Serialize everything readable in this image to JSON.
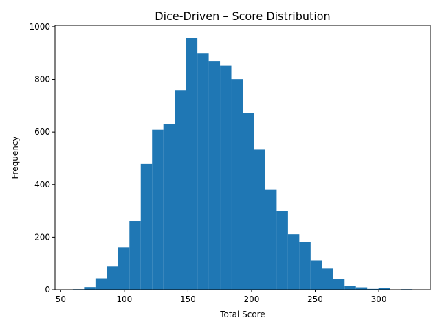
{
  "chart_data": {
    "type": "bar",
    "title": "Dice-Driven – Score Distribution",
    "xlabel": "Total Score",
    "ylabel": "Frequency",
    "color": "#1f77b4",
    "bin_edges": [
      59.5,
      68.4,
      77.3,
      86.2,
      95.1,
      104.0,
      112.9,
      121.8,
      130.7,
      139.6,
      148.5,
      157.4,
      166.3,
      175.2,
      184.1,
      193.0,
      201.9,
      210.8,
      219.7,
      228.6,
      237.5,
      246.4,
      255.3,
      264.2,
      273.1,
      282.0,
      290.9,
      299.8,
      308.7,
      317.6,
      326.5
    ],
    "values": [
      2,
      10,
      43,
      88,
      161,
      261,
      478,
      609,
      631,
      759,
      958,
      900,
      869,
      852,
      801,
      672,
      534,
      382,
      298,
      211,
      182,
      111,
      80,
      41,
      14,
      9,
      3,
      6,
      0,
      2
    ],
    "xlim": [
      45.5,
      340.5
    ],
    "ylim": [
      0,
      1005
    ],
    "xticks": [
      50,
      100,
      150,
      200,
      250,
      300
    ],
    "yticks": [
      0,
      200,
      400,
      600,
      800,
      1000
    ],
    "grid": false,
    "legend": "none"
  }
}
